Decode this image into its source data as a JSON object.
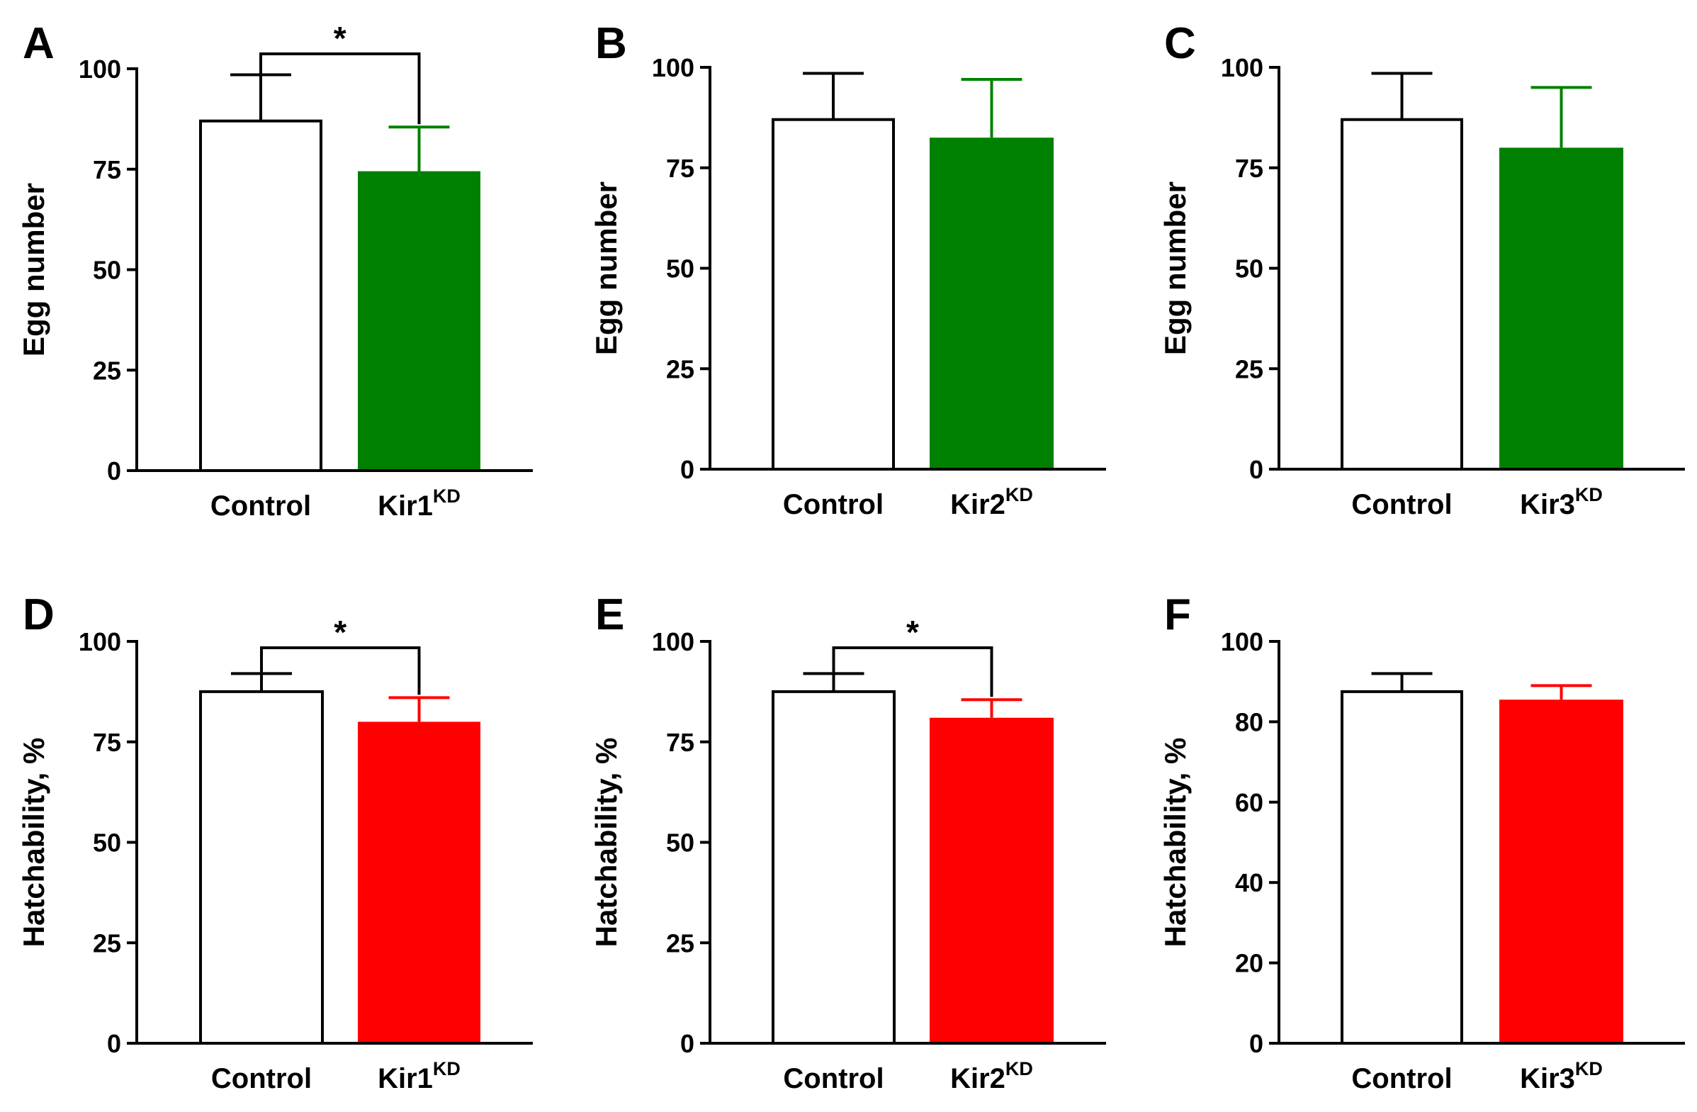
{
  "figure": {
    "panels": [
      {
        "id": "A",
        "label": "A"
      },
      {
        "id": "B",
        "label": "B"
      },
      {
        "id": "C",
        "label": "C"
      },
      {
        "id": "D",
        "label": "D"
      },
      {
        "id": "E",
        "label": "E"
      },
      {
        "id": "F",
        "label": "F"
      }
    ]
  },
  "chart_data": [
    {
      "panel": "A",
      "type": "bar",
      "ylabel": "Egg number",
      "ylim": [
        0,
        100
      ],
      "yticks": [
        0,
        25,
        50,
        75,
        100
      ],
      "categories": [
        {
          "name": "Control",
          "sup": ""
        },
        {
          "name": "Kir1",
          "sup": "KD"
        }
      ],
      "values": [
        87,
        74.5
      ],
      "errors": [
        11.5,
        11
      ],
      "colors": [
        "#ffffff",
        "#008000"
      ],
      "significance": {
        "between": [
          0,
          1
        ],
        "label": "*"
      }
    },
    {
      "panel": "B",
      "type": "bar",
      "ylabel": "Egg number",
      "ylim": [
        0,
        100
      ],
      "yticks": [
        0,
        25,
        50,
        75,
        100
      ],
      "categories": [
        {
          "name": "Control",
          "sup": ""
        },
        {
          "name": "Kir2",
          "sup": "KD"
        }
      ],
      "values": [
        87,
        82.5
      ],
      "errors": [
        11.5,
        14.5
      ],
      "colors": [
        "#ffffff",
        "#008000"
      ],
      "significance": null
    },
    {
      "panel": "C",
      "type": "bar",
      "ylabel": "Egg number",
      "ylim": [
        0,
        100
      ],
      "yticks": [
        0,
        25,
        50,
        75,
        100
      ],
      "categories": [
        {
          "name": "Control",
          "sup": ""
        },
        {
          "name": "Kir3",
          "sup": "KD"
        }
      ],
      "values": [
        87,
        80
      ],
      "errors": [
        11.5,
        15
      ],
      "colors": [
        "#ffffff",
        "#008000"
      ],
      "significance": null
    },
    {
      "panel": "D",
      "type": "bar",
      "ylabel": "Hatchability, %",
      "ylim": [
        0,
        100
      ],
      "yticks": [
        0,
        25,
        50,
        75,
        100
      ],
      "categories": [
        {
          "name": "Control",
          "sup": ""
        },
        {
          "name": "Kir1",
          "sup": "KD"
        }
      ],
      "values": [
        87.5,
        80
      ],
      "errors": [
        4.5,
        6
      ],
      "colors": [
        "#ffffff",
        "#ff0000"
      ],
      "significance": {
        "between": [
          0,
          1
        ],
        "label": "*"
      }
    },
    {
      "panel": "E",
      "type": "bar",
      "ylabel": "Hatchability, %",
      "ylim": [
        0,
        100
      ],
      "yticks": [
        0,
        25,
        50,
        75,
        100
      ],
      "categories": [
        {
          "name": "Control",
          "sup": ""
        },
        {
          "name": "Kir2",
          "sup": "KD"
        }
      ],
      "values": [
        87.5,
        81
      ],
      "errors": [
        4.5,
        4.5
      ],
      "colors": [
        "#ffffff",
        "#ff0000"
      ],
      "significance": {
        "between": [
          0,
          1
        ],
        "label": "*"
      }
    },
    {
      "panel": "F",
      "type": "bar",
      "ylabel": "Hatchability, %",
      "ylim": [
        0,
        100
      ],
      "yticks": [
        0,
        20,
        40,
        60,
        80,
        100
      ],
      "categories": [
        {
          "name": "Control",
          "sup": ""
        },
        {
          "name": "Kir3",
          "sup": "KD"
        }
      ],
      "values": [
        87.5,
        85.5
      ],
      "errors": [
        4.5,
        3.5
      ],
      "colors": [
        "#ffffff",
        "#ff0000"
      ],
      "significance": null
    }
  ]
}
